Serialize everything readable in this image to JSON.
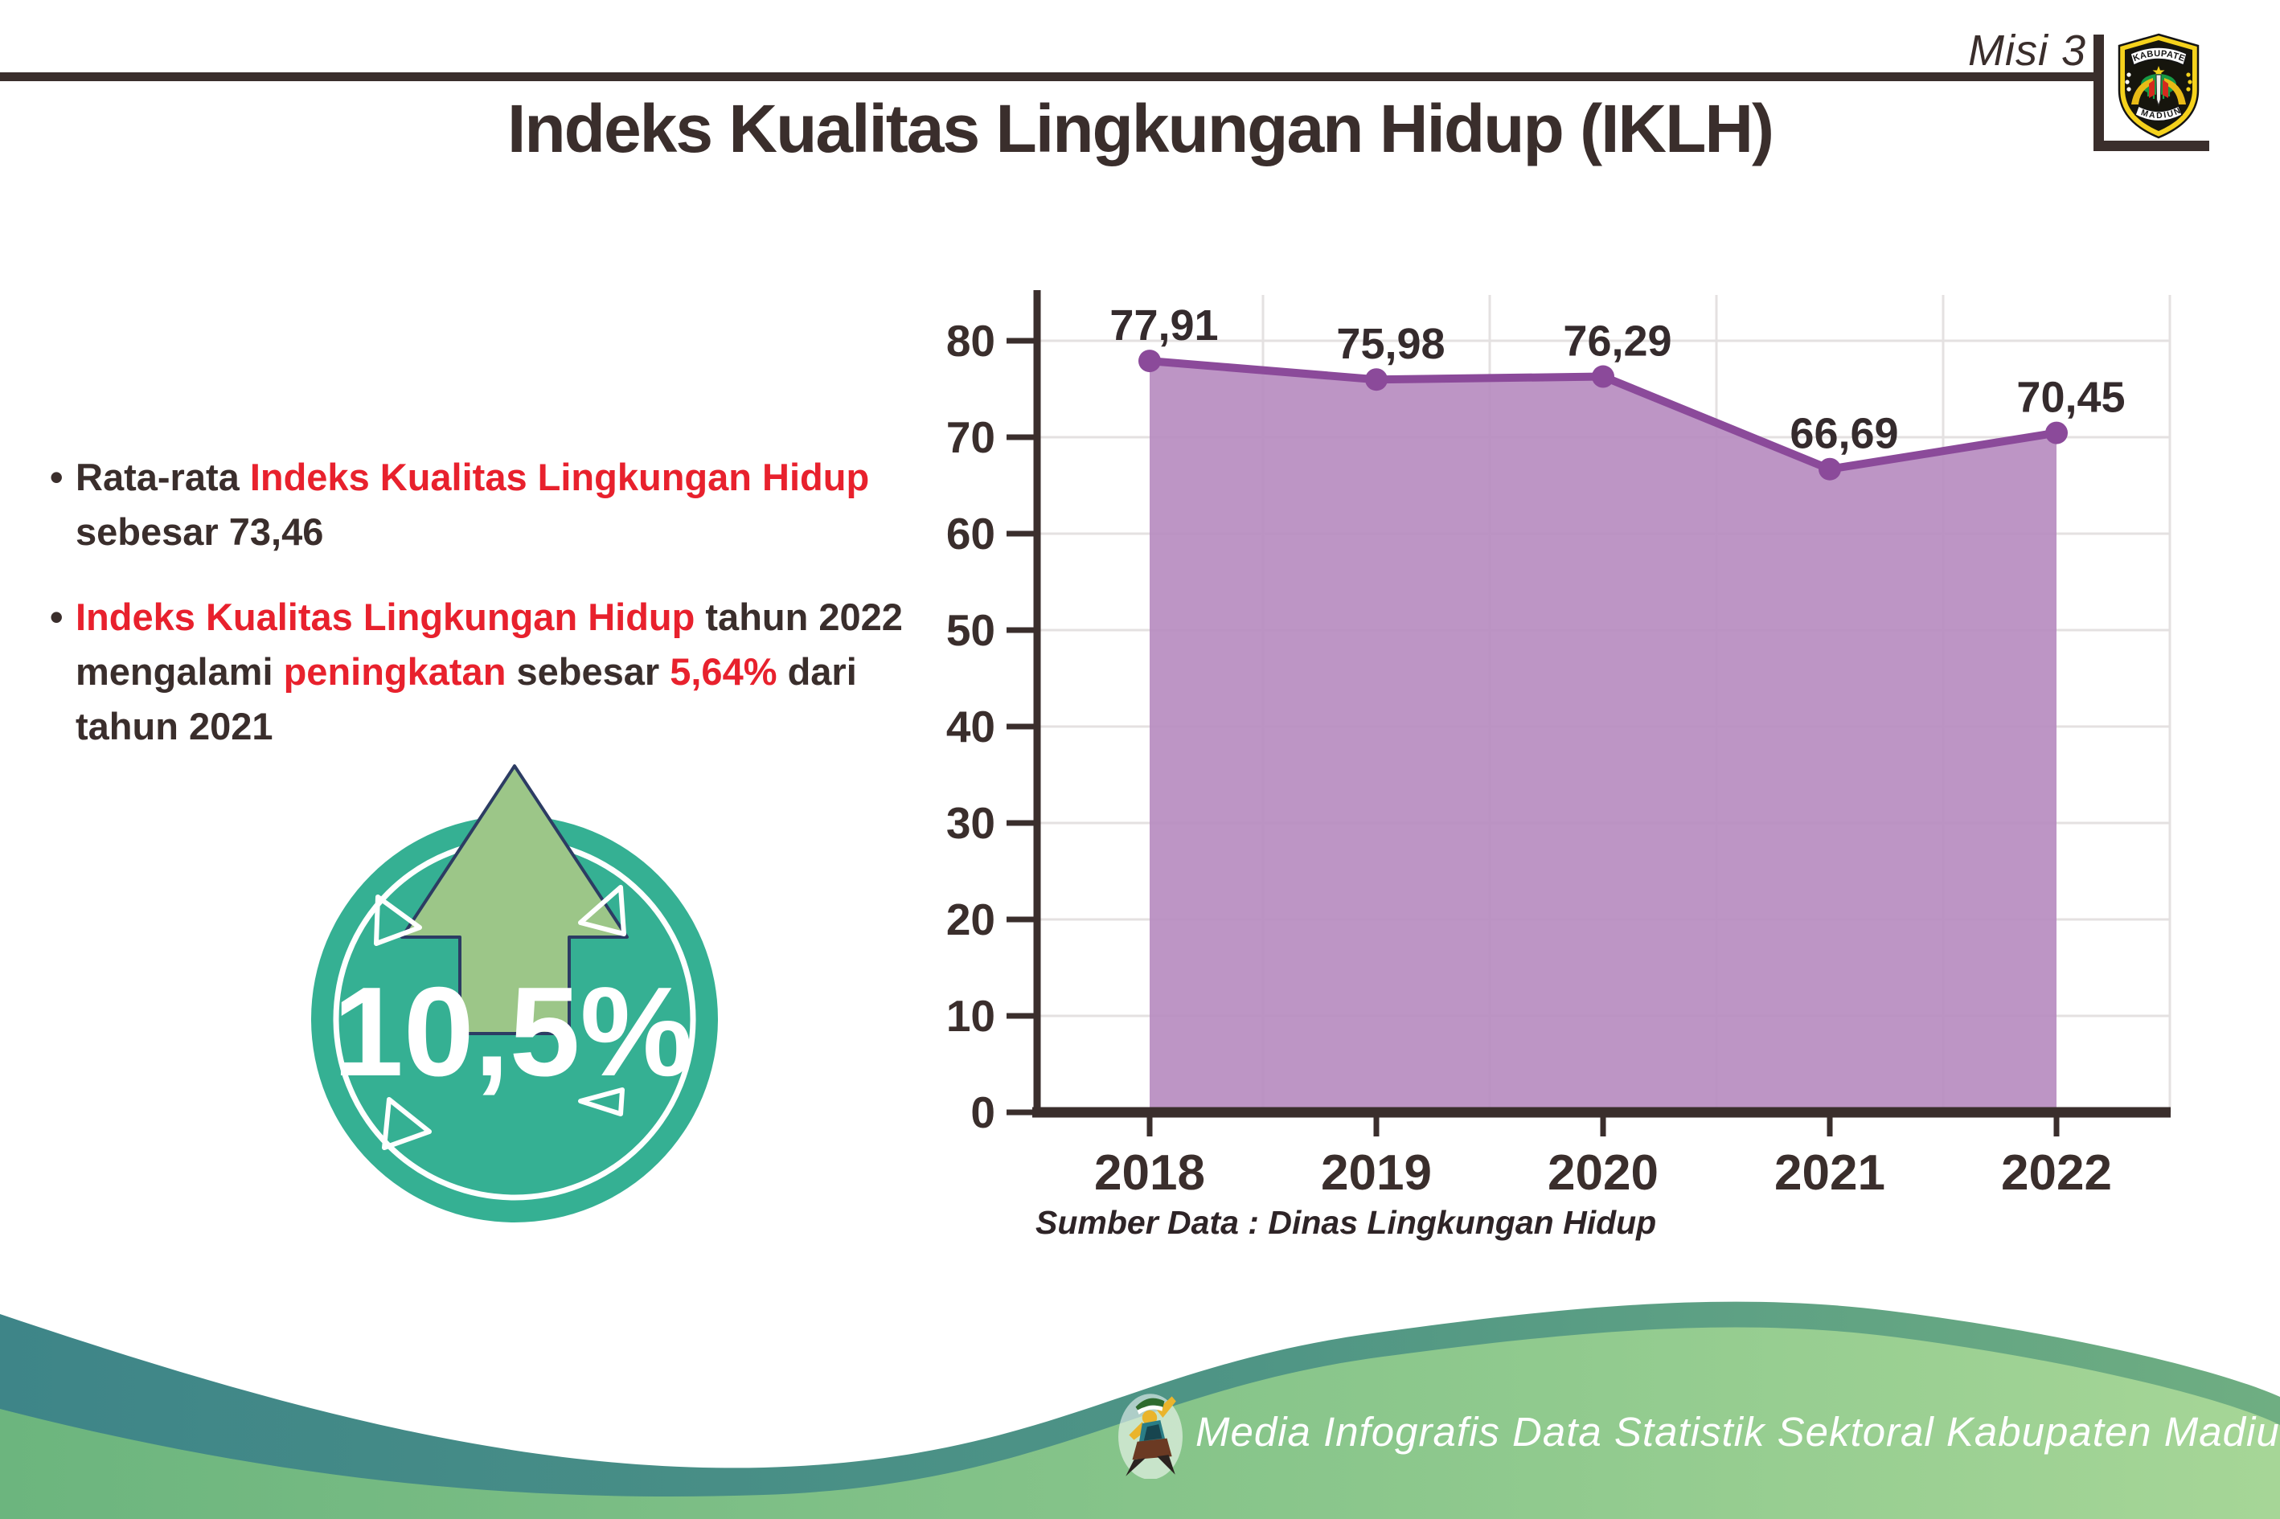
{
  "meta": {
    "mission_label": "Misi 3"
  },
  "logo": {
    "top_text": "KABUPATEN",
    "bottom_text": "MADIUN"
  },
  "title": "Indeks Kualitas Lingkungan Hidup (IKLH)",
  "bullets": [
    {
      "segments": [
        {
          "text": "Rata-rata ",
          "color": "dark"
        },
        {
          "text": "Indeks Kualitas Lingkungan Hidup",
          "color": "red"
        },
        {
          "text": " sebesar 73,46",
          "color": "dark"
        }
      ]
    },
    {
      "segments": [
        {
          "text": "Indeks Kualitas Lingkungan Hidup",
          "color": "red"
        },
        {
          "text": " tahun 2022 mengalami ",
          "color": "dark"
        },
        {
          "text": "peningkatan",
          "color": "red"
        },
        {
          "text": " sebesar ",
          "color": "dark"
        },
        {
          "text": "5,64%",
          "color": "red"
        },
        {
          "text": " dari tahun 2021",
          "color": "dark"
        }
      ]
    }
  ],
  "badge": {
    "value": "10,5%",
    "circle_color": "#35b093",
    "arrow_color": "#9cc688"
  },
  "chart_data": {
    "type": "area",
    "categories": [
      "2018",
      "2019",
      "2020",
      "2021",
      "2022"
    ],
    "values": [
      77.91,
      75.98,
      76.29,
      66.69,
      70.45
    ],
    "value_labels": [
      "77,91",
      "75,98",
      "76,29",
      "66,69",
      "70,45"
    ],
    "title": "",
    "xlabel": "",
    "ylabel": "",
    "ylim": [
      0,
      80
    ],
    "yticks": [
      0,
      10,
      20,
      30,
      40,
      50,
      60,
      70,
      80
    ],
    "grid": "on",
    "legend": "none",
    "line_color": "#8b4a9a",
    "fill_color": "#b78cc0",
    "axis_color": "#3a2e2c",
    "source": "Sumber Data : Dinas Lingkungan Hidup"
  },
  "footer": {
    "caption": "Media Infografis Data Statistik Sektoral Kabupaten Madiun |"
  }
}
